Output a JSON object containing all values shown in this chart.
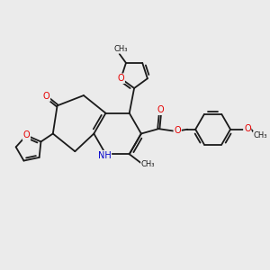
{
  "bg_color": "#ebebeb",
  "bond_color": "#1a1a1a",
  "o_color": "#e60000",
  "n_color": "#0000cc",
  "lw": 1.3,
  "figsize": [
    3.0,
    3.0
  ],
  "dpi": 100,
  "xlim": [
    0,
    10
  ],
  "ylim": [
    0,
    10
  ]
}
